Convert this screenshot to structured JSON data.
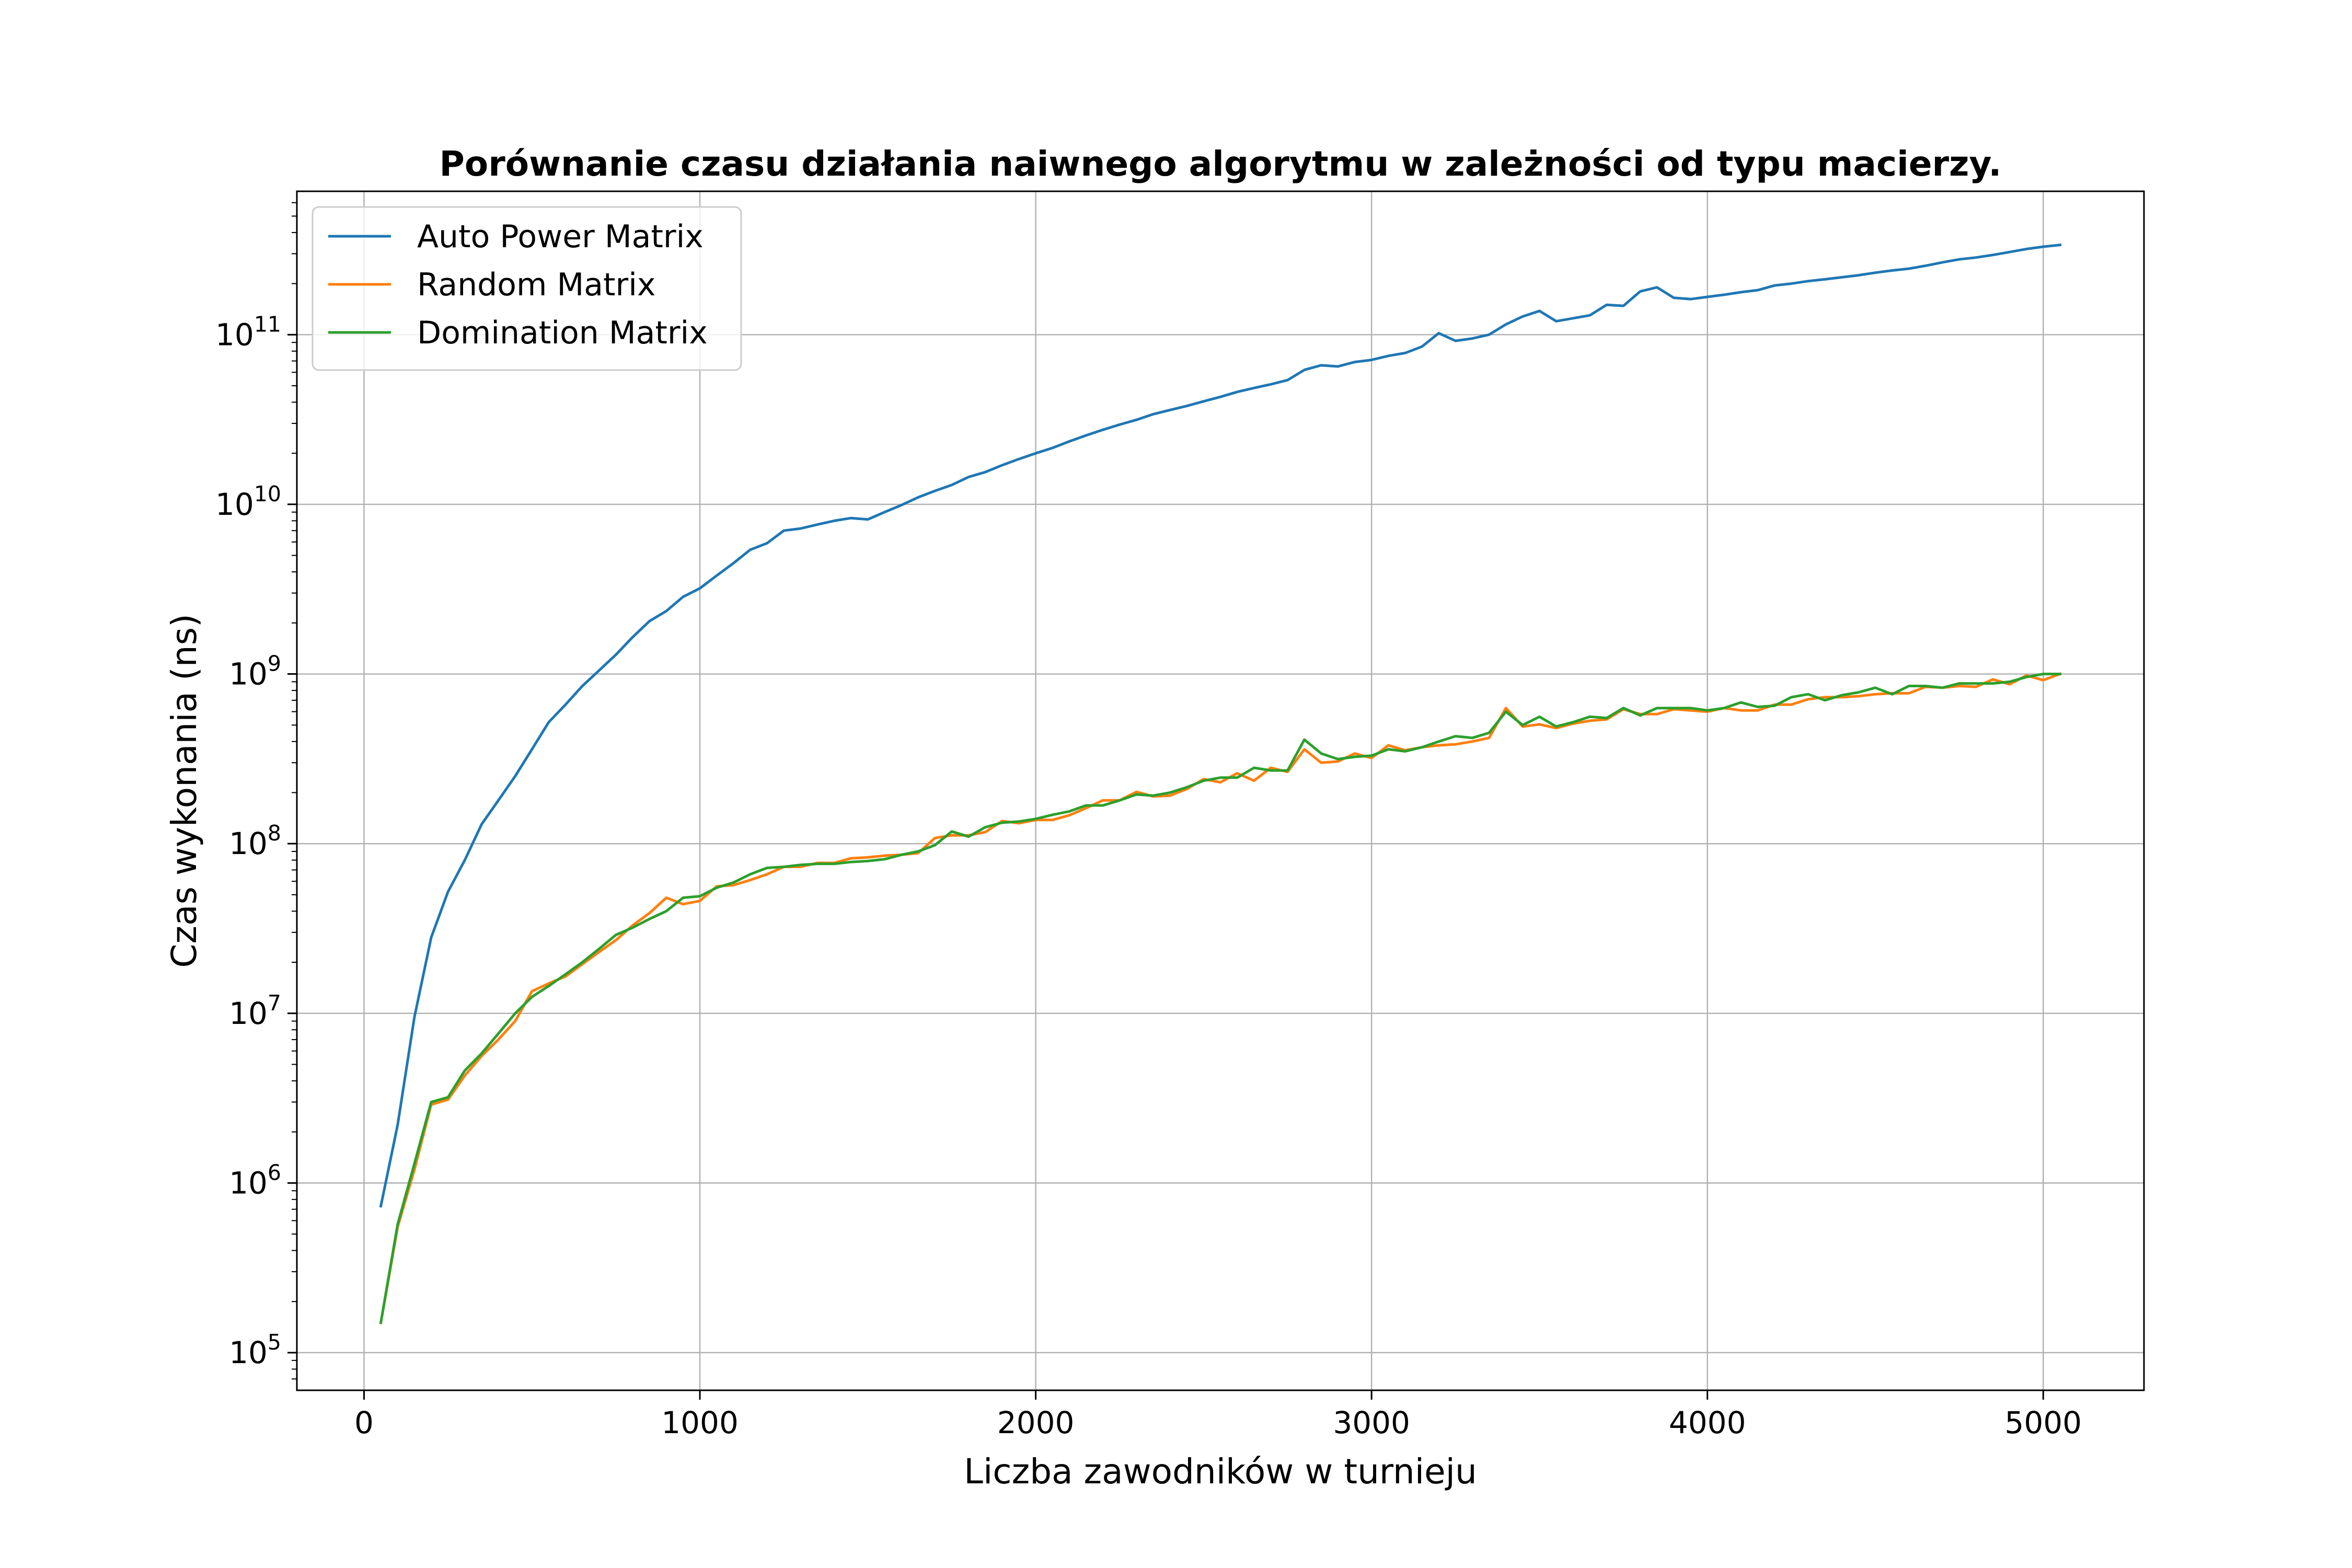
{
  "chart_data": {
    "type": "line",
    "title": "Porównanie czasu działania naiwnego algorytmu w zależności od typu macierzy.",
    "xlabel": "Liczba zawodników w turnieju",
    "ylabel": "Czas wykonania (ns)",
    "xlim": [
      -200,
      5300
    ],
    "ylim": [
      60000,
      700000000000
    ],
    "yscale": "log",
    "xticks": [
      0,
      1000,
      2000,
      3000,
      4000,
      5000
    ],
    "xtick_labels": [
      "0",
      "1000",
      "2000",
      "3000",
      "4000",
      "5000"
    ],
    "yticks": [
      {
        "value": 100000,
        "base": "10",
        "exp": "5"
      },
      {
        "value": 1000000,
        "base": "10",
        "exp": "6"
      },
      {
        "value": 10000000,
        "base": "10",
        "exp": "7"
      },
      {
        "value": 100000000,
        "base": "10",
        "exp": "8"
      },
      {
        "value": 1000000000,
        "base": "10",
        "exp": "9"
      },
      {
        "value": 10000000000,
        "base": "10",
        "exp": "10"
      },
      {
        "value": 100000000000,
        "base": "10",
        "exp": "11"
      }
    ],
    "grid": true,
    "legend_position": "upper-left",
    "series": [
      {
        "name": "Auto Power Matrix",
        "color": "#1f77b4",
        "x": [
          50,
          100,
          150,
          200,
          250,
          300,
          350,
          400,
          450,
          500,
          550,
          600,
          650,
          700,
          750,
          800,
          850,
          900,
          950,
          1000,
          1050,
          1100,
          1150,
          1200,
          1250,
          1300,
          1350,
          1400,
          1450,
          1500,
          1550,
          1600,
          1650,
          1700,
          1750,
          1800,
          1850,
          1900,
          1950,
          2000,
          2050,
          2100,
          2150,
          2200,
          2250,
          2300,
          2350,
          2400,
          2450,
          2500,
          2550,
          2600,
          2650,
          2700,
          2750,
          2800,
          2850,
          2900,
          2950,
          3000,
          3050,
          3100,
          3150,
          3200,
          3250,
          3300,
          3350,
          3400,
          3450,
          3500,
          3550,
          3600,
          3650,
          3700,
          3750,
          3800,
          3850,
          3900,
          3950,
          4000,
          4050,
          4100,
          4150,
          4200,
          4250,
          4300,
          4350,
          4400,
          4450,
          4500,
          4550,
          4600,
          4650,
          4700,
          4750,
          4800,
          4850,
          4900,
          4950,
          5000,
          5050
        ],
        "y": [
          730000.0,
          2200000.0,
          9500000.0,
          28000000.0,
          52000000.0,
          80000000.0,
          130000000.0,
          180000000.0,
          250000000.0,
          360000000.0,
          520000000.0,
          660000000.0,
          850000000.0,
          1050000000.0,
          1300000000.0,
          1650000000.0,
          2050000000.0,
          2350000000.0,
          2850000000.0,
          3200000000.0,
          3800000000.0,
          4500000000.0,
          5400000000.0,
          5900000000.0,
          7000000000.0,
          7200000000.0,
          7600000000.0,
          8000000000.0,
          8300000000.0,
          8150000000.0,
          9000000000.0,
          9900000000.0,
          11000000000.0,
          12000000000.0,
          13000000000.0,
          14500000000.0,
          15500000000.0,
          17000000000.0,
          18500000000.0,
          20000000000.0,
          21500000000.0,
          23500000000.0,
          25500000000.0,
          27500000000.0,
          29500000000.0,
          31500000000.0,
          34000000000.0,
          36000000000.0,
          38000000000.0,
          40500000000.0,
          43000000000.0,
          46000000000.0,
          48500000000.0,
          51000000000.0,
          54000000000.0,
          62000000000.0,
          66000000000.0,
          65000000000.0,
          69000000000.0,
          71000000000.0,
          75000000000.0,
          78000000000.0,
          85000000000.0,
          102000000000.0,
          92000000000.0,
          95000000000.0,
          100000000000.0,
          115000000000.0,
          128000000000.0,
          138000000000.0,
          120000000000.0,
          125000000000.0,
          130000000000.0,
          150000000000.0,
          148000000000.0,
          180000000000.0,
          190000000000.0,
          165000000000.0,
          162000000000.0,
          167000000000.0,
          172000000000.0,
          178000000000.0,
          183000000000.0,
          195000000000.0,
          200000000000.0,
          207000000000.0,
          212000000000.0,
          218000000000.0,
          224000000000.0,
          232000000000.0,
          239000000000.0,
          245000000000.0,
          255000000000.0,
          267000000000.0,
          278000000000.0,
          285000000000.0,
          295000000000.0,
          307000000000.0,
          320000000000.0,
          330000000000.0,
          338000000000.0
        ]
      },
      {
        "name": "Random Matrix",
        "color": "#ff7f0e",
        "x": [
          50,
          100,
          150,
          200,
          250,
          300,
          350,
          400,
          450,
          500,
          550,
          600,
          650,
          700,
          750,
          800,
          850,
          900,
          950,
          1000,
          1050,
          1100,
          1150,
          1200,
          1250,
          1300,
          1350,
          1400,
          1450,
          1500,
          1550,
          1600,
          1650,
          1700,
          1750,
          1800,
          1850,
          1900,
          1950,
          2000,
          2050,
          2100,
          2150,
          2200,
          2250,
          2300,
          2350,
          2400,
          2450,
          2500,
          2550,
          2600,
          2650,
          2700,
          2750,
          2800,
          2850,
          2900,
          2950,
          3000,
          3050,
          3100,
          3150,
          3200,
          3250,
          3300,
          3350,
          3400,
          3450,
          3500,
          3550,
          3600,
          3650,
          3700,
          3750,
          3800,
          3850,
          3900,
          3950,
          4000,
          4050,
          4100,
          4150,
          4200,
          4250,
          4300,
          4350,
          4400,
          4450,
          4500,
          4550,
          4600,
          4650,
          4700,
          4750,
          4800,
          4850,
          4900,
          4950,
          5000,
          5050
        ],
        "y": [
          150000.0,
          550000.0,
          1200000.0,
          2900000.0,
          3100000.0,
          4300000.0,
          5600000.0,
          7000000.0,
          9000000.0,
          13500000.0,
          15000000.0,
          16500000.0,
          19500000.0,
          23000000.0,
          27000000.0,
          33000000.0,
          39000000.0,
          48000000.0,
          44000000.0,
          46000000.0,
          56000000.0,
          57000000.0,
          61000000.0,
          66000000.0,
          73000000.0,
          73000000.0,
          77000000.0,
          77000000.0,
          82000000.0,
          83000000.0,
          85000000.0,
          86000000.0,
          88000000.0,
          108000000.0,
          112000000.0,
          112000000.0,
          117000000.0,
          136000000.0,
          132000000.0,
          138000000.0,
          138000000.0,
          147000000.0,
          162000000.0,
          180000000.0,
          180000000.0,
          202000000.0,
          190000000.0,
          192000000.0,
          210000000.0,
          240000000.0,
          230000000.0,
          260000000.0,
          235000000.0,
          280000000.0,
          265000000.0,
          360000000.0,
          300000000.0,
          305000000.0,
          340000000.0,
          320000000.0,
          380000000.0,
          355000000.0,
          370000000.0,
          380000000.0,
          385000000.0,
          400000000.0,
          420000000.0,
          630000000.0,
          490000000.0,
          505000000.0,
          480000000.0,
          510000000.0,
          530000000.0,
          540000000.0,
          620000000.0,
          580000000.0,
          580000000.0,
          620000000.0,
          610000000.0,
          600000000.0,
          630000000.0,
          610000000.0,
          610000000.0,
          660000000.0,
          660000000.0,
          710000000.0,
          730000000.0,
          730000000.0,
          740000000.0,
          760000000.0,
          770000000.0,
          770000000.0,
          840000000.0,
          830000000.0,
          850000000.0,
          840000000.0,
          930000000.0,
          870000000.0,
          980000000.0,
          920000000.0,
          1000000000.0
        ]
      },
      {
        "name": "Domination Matrix",
        "color": "#2ca02c",
        "x": [
          50,
          100,
          150,
          200,
          250,
          300,
          350,
          400,
          450,
          500,
          550,
          600,
          650,
          700,
          750,
          800,
          850,
          900,
          950,
          1000,
          1050,
          1100,
          1150,
          1200,
          1250,
          1300,
          1350,
          1400,
          1450,
          1500,
          1550,
          1600,
          1650,
          1700,
          1750,
          1800,
          1850,
          1900,
          1950,
          2000,
          2050,
          2100,
          2150,
          2200,
          2250,
          2300,
          2350,
          2400,
          2450,
          2500,
          2550,
          2600,
          2650,
          2700,
          2750,
          2800,
          2850,
          2900,
          2950,
          3000,
          3050,
          3100,
          3150,
          3200,
          3250,
          3300,
          3350,
          3400,
          3450,
          3500,
          3550,
          3600,
          3650,
          3700,
          3750,
          3800,
          3850,
          3900,
          3950,
          4000,
          4050,
          4100,
          4150,
          4200,
          4250,
          4300,
          4350,
          4400,
          4450,
          4500,
          4550,
          4600,
          4650,
          4700,
          4750,
          4800,
          4850,
          4900,
          4950,
          5000,
          5050
        ],
        "y": [
          150000.0,
          570000.0,
          1300000.0,
          3000000.0,
          3200000.0,
          4600000.0,
          5800000.0,
          7600000.0,
          10000000.0,
          12500000.0,
          14500000.0,
          17000000.0,
          20000000.0,
          24000000.0,
          29000000.0,
          32000000.0,
          36000000.0,
          40000000.0,
          48000000.0,
          49000000.0,
          55000000.0,
          59000000.0,
          66000000.0,
          72000000.0,
          73000000.0,
          75000000.0,
          76000000.0,
          76000000.0,
          78000000.0,
          79000000.0,
          81000000.0,
          86000000.0,
          90000000.0,
          98000000.0,
          118000000.0,
          110000000.0,
          125000000.0,
          133000000.0,
          135000000.0,
          140000000.0,
          148000000.0,
          155000000.0,
          168000000.0,
          168000000.0,
          180000000.0,
          195000000.0,
          192000000.0,
          200000000.0,
          215000000.0,
          235000000.0,
          245000000.0,
          245000000.0,
          280000000.0,
          270000000.0,
          270000000.0,
          410000000.0,
          340000000.0,
          315000000.0,
          325000000.0,
          330000000.0,
          360000000.0,
          350000000.0,
          370000000.0,
          400000000.0,
          430000000.0,
          420000000.0,
          450000000.0,
          600000000.0,
          500000000.0,
          560000000.0,
          490000000.0,
          520000000.0,
          560000000.0,
          550000000.0,
          630000000.0,
          570000000.0,
          630000000.0,
          630000000.0,
          630000000.0,
          610000000.0,
          630000000.0,
          680000000.0,
          640000000.0,
          650000000.0,
          730000000.0,
          760000000.0,
          700000000.0,
          750000000.0,
          780000000.0,
          830000000.0,
          760000000.0,
          850000000.0,
          850000000.0,
          830000000.0,
          880000000.0,
          880000000.0,
          880000000.0,
          900000000.0,
          960000000.0,
          1000000000.0,
          1000000000.0
        ]
      }
    ]
  }
}
